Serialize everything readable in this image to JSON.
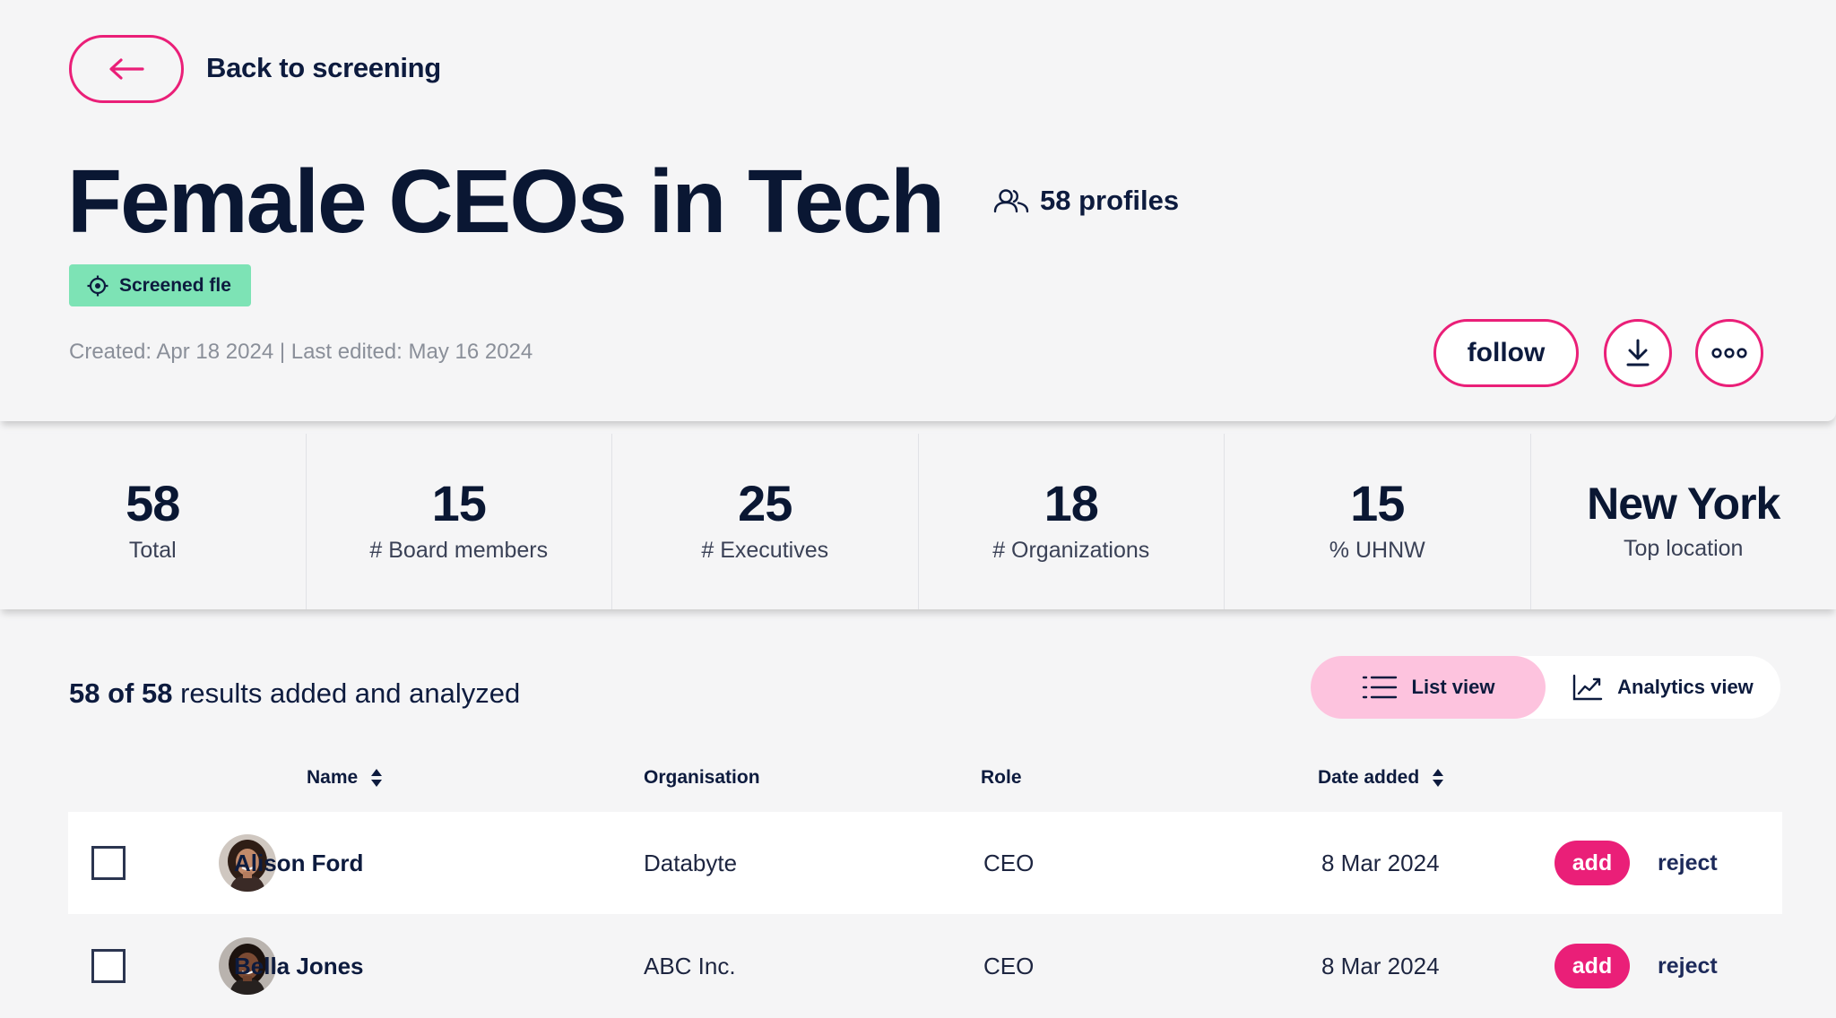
{
  "header": {
    "back_label": "Back to screening",
    "title": "Female CEOs in Tech",
    "profiles_count": "58 profiles",
    "badge": "Screened fle",
    "meta": "Created: Apr 18 2024 | Last edited: May 16 2024",
    "follow_label": "follow",
    "icons": [
      "arrow-left-icon",
      "users-icon",
      "target-icon",
      "download-icon",
      "more-icon"
    ]
  },
  "stats": [
    {
      "value": "58",
      "label": "Total"
    },
    {
      "value": "15",
      "label": "# Board members"
    },
    {
      "value": "25",
      "label": "# Executives"
    },
    {
      "value": "18",
      "label": "# Organizations"
    },
    {
      "value": "15",
      "label": "% UHNW"
    },
    {
      "value": "New York",
      "label": "Top location"
    }
  ],
  "results": {
    "count": "58 of 58",
    "suffix": " results added and analyzed"
  },
  "views": {
    "list": "List view",
    "analytics": "Analytics view"
  },
  "table": {
    "headers": {
      "name": "Name",
      "organisation": "Organisation",
      "role": "Role",
      "date": "Date added"
    },
    "rows": [
      {
        "name": "Alison Ford",
        "organisation": "Databyte",
        "role": "CEO",
        "date": "8 Mar 2024",
        "add": "add",
        "reject": "reject"
      },
      {
        "name": "Bella Jones",
        "organisation": "ABC Inc.",
        "role": "CEO",
        "date": "8 Mar 2024",
        "add": "add",
        "reject": "reject"
      }
    ]
  },
  "colors": {
    "accent": "#ea1f78",
    "navy": "#0d1b3e",
    "badge": "#7de3b5",
    "toggle_active": "#fdc3de"
  }
}
